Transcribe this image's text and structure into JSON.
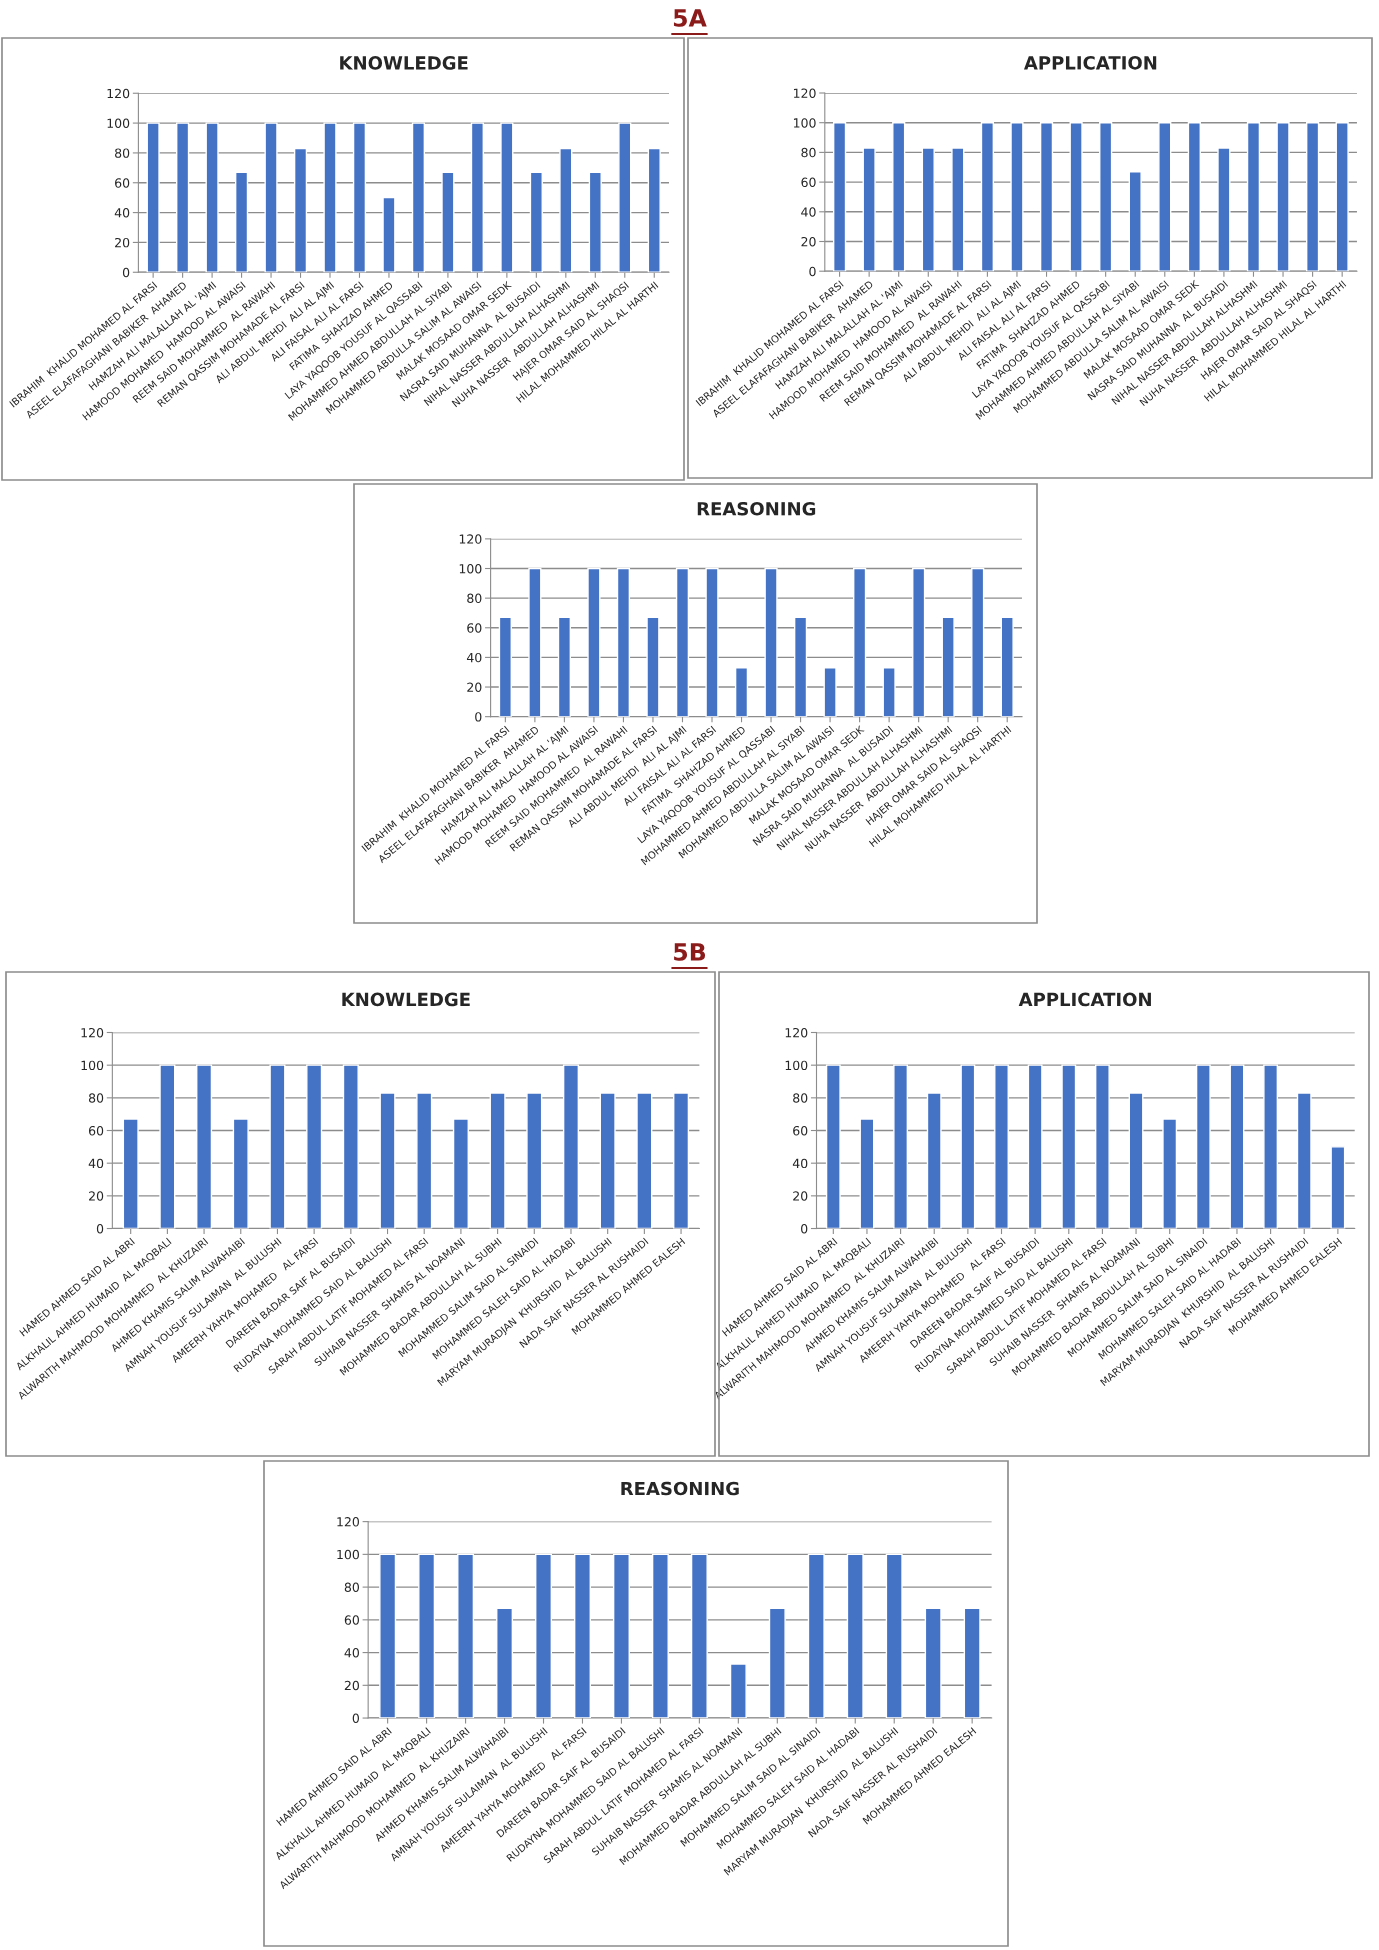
{
  "chart_data": [
    {
      "type": "bar",
      "title": "KNOWLEDGE",
      "annotations": [
        "5A"
      ],
      "categories": [
        "IBRAHIM  KHALID MOHAMED AL FARSI",
        "ASEEL ELAFAFAGHANI BABIKER  AHAMED",
        "HAMZAH ALI MALALLAH AL 'AJMI",
        "HAMOOD MOHAMED  HAMOOD AL AWAISI",
        "REEM SAID MOHAMMED  AL RAWAHI",
        "REMAN QASSIM MOHAMADE AL FARSI",
        "ALI ABDUL MEHDI  ALI AL AJMI",
        "ALI FAISAL ALI AL FARSI",
        "FATIMA  SHAHZAD AHMED",
        "LAYA YAQOOB YOUSUF AL QASSABI",
        "MOHAMMED AHMED ABDULLAH AL SIYABI",
        "MOHAMMED ABDULLA SALIM AL AWAISI",
        "MALAK MOSAAD OMAR SEDK",
        "NASRA SAID MUHANNA  AL BUSAIDI",
        "NIHAL NASSER ABDULLAH ALHASHMI",
        "NUHA NASSER  ABDULLAH ALHASHMI",
        "HAJER OMAR SAID AL SHAQSI",
        "HILAL MOHAMMED HILAL AL HARTHI"
      ],
      "values": [
        100,
        100,
        100,
        67,
        100,
        83,
        100,
        100,
        50,
        100,
        67,
        100,
        100,
        67,
        83,
        67,
        100,
        83
      ],
      "color": "#4472c4",
      "ylim": [
        0,
        120
      ],
      "yticks": [
        0,
        20,
        40,
        60,
        80,
        100,
        120
      ],
      "grid": "y"
    },
    {
      "type": "bar",
      "title": "APPLICATION",
      "categories": [
        "IBRAHIM  KHALID MOHAMED AL FARSI",
        "ASEEL ELAFAFAGHANI BABIKER  AHAMED",
        "HAMZAH ALI MALALLAH AL 'AJMI",
        "HAMOOD MOHAMED  HAMOOD AL AWAISI",
        "REEM SAID MOHAMMED  AL RAWAHI",
        "REMAN QASSIM MOHAMADE AL FARSI",
        "ALI ABDUL MEHDI  ALI AL AJMI",
        "ALI FAISAL ALI AL FARSI",
        "FATIMA  SHAHZAD AHMED",
        "LAYA YAQOOB YOUSUF AL QASSABI",
        "MOHAMMED AHMED ABDULLAH AL SIYABI",
        "MOHAMMED ABDULLA SALIM AL AWAISI",
        "MALAK MOSAAD OMAR SEDK",
        "NASRA SAID MUHANNA  AL BUSAIDI",
        "NIHAL NASSER ABDULLAH ALHASHMI",
        "NUHA NASSER  ABDULLAH ALHASHMI",
        "HAJER OMAR SAID AL SHAQSI",
        "HILAL MOHAMMED HILAL AL HARTHI"
      ],
      "values": [
        100,
        83,
        100,
        83,
        83,
        100,
        100,
        100,
        100,
        100,
        67,
        100,
        100,
        83,
        100,
        100,
        100,
        100
      ],
      "color": "#4472c4",
      "ylim": [
        0,
        120
      ],
      "yticks": [
        0,
        20,
        40,
        60,
        80,
        100,
        120
      ],
      "grid": "y"
    },
    {
      "type": "bar",
      "title": "REASONING",
      "categories": [
        "IBRAHIM  KHALID MOHAMED AL FARSI",
        "ASEEL ELAFAFAGHANI BABIKER  AHAMED",
        "HAMZAH ALI MALALLAH AL 'AJMI",
        "HAMOOD MOHAMED  HAMOOD AL AWAISI",
        "REEM SAID MOHAMMED  AL RAWAHI",
        "REMAN QASSIM MOHAMADE AL FARSI",
        "ALI ABDUL MEHDI  ALI AL AJMI",
        "ALI FAISAL ALI AL FARSI",
        "FATIMA  SHAHZAD AHMED",
        "LAYA YAQOOB YOUSUF AL QASSABI",
        "MOHAMMED AHMED ABDULLAH AL SIYABI",
        "MOHAMMED ABDULLA SALIM AL AWAISI",
        "MALAK MOSAAD OMAR SEDK",
        "NASRA SAID MUHANNA  AL BUSAIDI",
        "NIHAL NASSER ABDULLAH ALHASHMI",
        "NUHA NASSER  ABDULLAH ALHASHMI",
        "HAJER OMAR SAID AL SHAQSI",
        "HILAL MOHAMMED HILAL AL HARTHI"
      ],
      "values": [
        67,
        100,
        67,
        100,
        100,
        67,
        100,
        100,
        33,
        100,
        67,
        33,
        100,
        33,
        100,
        67,
        100,
        67
      ],
      "color": "#4472c4",
      "ylim": [
        0,
        120
      ],
      "yticks": [
        0,
        20,
        40,
        60,
        80,
        100,
        120
      ],
      "grid": "y"
    },
    {
      "type": "bar",
      "title": "KNOWLEDGE",
      "annotations": [
        "5B"
      ],
      "categories": [
        "HAMED AHMED SAID AL ABRI",
        "ALKHALIL AHMED HUMAID  AL MAQBALI",
        "ALWARITH MAHMOOD MOHAMMED  AL KHUZAIRI",
        "AHMED KHAMIS SALIM ALWAHAIBI",
        "AMNAH YOUSUF SULAIMAN  AL BULUSHI",
        "AMEERH YAHYA MOHAMED   AL FARSI",
        "DAREEN BADAR SAIF AL BUSAIDI",
        "RUDAYNA MOHAMMED SAID AL BALUSHI",
        "SARAH ABDUL LATIF MOHAMED AL FARSI",
        "SUHAIB NASSER  SHAMIS AL NOAMANI",
        "MOHAMMED BADAR ABDULLAH AL SUBHI",
        "MOHAMMED SALIM SAID AL SINAIDI",
        "MOHAMMED SALEH SAID AL HADABI",
        "MARYAM MURADJAN  KHURSHID  AL BALUSHI",
        "NADA SAIF NASSER AL RUSHAIDI",
        "MOHAMMED AHMED EALESH"
      ],
      "values": [
        67,
        100,
        100,
        67,
        100,
        100,
        100,
        83,
        83,
        67,
        83,
        83,
        100,
        83,
        83,
        83
      ],
      "color": "#4472c4",
      "ylim": [
        0,
        120
      ],
      "yticks": [
        0,
        20,
        40,
        60,
        80,
        100,
        120
      ],
      "grid": "y"
    },
    {
      "type": "bar",
      "title": "APPLICATION",
      "categories": [
        "HAMED AHMED SAID AL ABRI",
        "ALKHALIL AHMED HUMAID  AL MAQBALI",
        "ALWARITH MAHMOOD MOHAMMED  AL KHUZAIRI",
        "AHMED KHAMIS SALIM ALWAHAIBI",
        "AMNAH YOUSUF SULAIMAN  AL BULUSHI",
        "AMEERH YAHYA MOHAMED   AL FARSI",
        "DAREEN BADAR SAIF AL BUSAIDI",
        "RUDAYNA MOHAMMED SAID AL BALUSHI",
        "SARAH ABDUL LATIF MOHAMED AL FARSI",
        "SUHAIB NASSER  SHAMIS AL NOAMANI",
        "MOHAMMED BADAR ABDULLAH AL SUBHI",
        "MOHAMMED SALIM SAID AL SINAIDI",
        "MOHAMMED SALEH SAID AL HADABI",
        "MARYAM MURADJAN  KHURSHID  AL BALUSHI",
        "NADA SAIF NASSER AL RUSHAIDI",
        "MOHAMMED AHMED EALESH"
      ],
      "values": [
        100,
        67,
        100,
        83,
        100,
        100,
        100,
        100,
        100,
        83,
        67,
        100,
        100,
        100,
        83,
        50
      ],
      "color": "#4472c4",
      "ylim": [
        0,
        120
      ],
      "yticks": [
        0,
        20,
        40,
        60,
        80,
        100,
        120
      ],
      "grid": "y"
    },
    {
      "type": "bar",
      "title": "REASONING",
      "categories": [
        "HAMED AHMED SAID AL ABRI",
        "ALKHALIL AHMED HUMAID  AL MAQBALI",
        "ALWARITH MAHMOOD MOHAMMED  AL KHUZAIRI",
        "AHMED KHAMIS SALIM ALWAHAIBI",
        "AMNAH YOUSUF SULAIMAN  AL BULUSHI",
        "AMEERH YAHYA MOHAMED   AL FARSI",
        "DAREEN BADAR SAIF AL BUSAIDI",
        "RUDAYNA MOHAMMED SAID AL BALUSHI",
        "SARAH ABDUL LATIF MOHAMED AL FARSI",
        "SUHAIB NASSER  SHAMIS AL NOAMANI",
        "MOHAMMED BADAR ABDULLAH AL SUBHI",
        "MOHAMMED SALIM SAID AL SINAIDI",
        "MOHAMMED SALEH SAID AL HADABI",
        "MARYAM MURADJAN  KHURSHID  AL BALUSHI",
        "NADA SAIF NASSER AL RUSHAIDI",
        "MOHAMMED AHMED EALESH"
      ],
      "values": [
        100,
        100,
        100,
        67,
        100,
        100,
        100,
        100,
        100,
        33,
        67,
        100,
        100,
        100,
        67,
        67
      ],
      "color": "#4472c4",
      "ylim": [
        0,
        120
      ],
      "yticks": [
        0,
        20,
        40,
        60,
        80,
        100,
        120
      ],
      "grid": "y"
    }
  ]
}
